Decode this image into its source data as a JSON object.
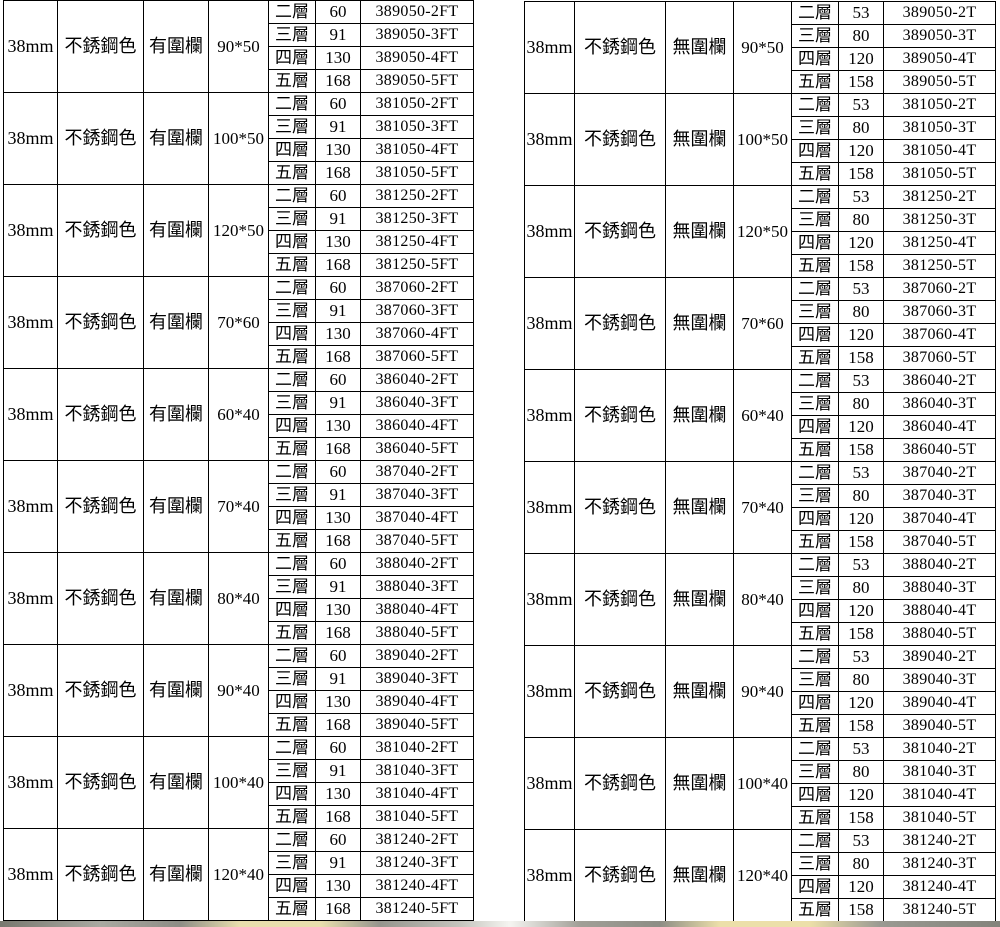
{
  "page": {
    "background": "#ffffff",
    "border_color": "#000000",
    "text_color": "#000000"
  },
  "tables": [
    {
      "id": "with-fence",
      "groups": [
        {
          "thickness": "38mm",
          "color": "不銹鋼色",
          "fence": "有圍欄",
          "size": "90*50",
          "rows": [
            [
              "二層",
              "60",
              "389050-2FT"
            ],
            [
              "三層",
              "91",
              "389050-3FT"
            ],
            [
              "四層",
              "130",
              "389050-4FT"
            ],
            [
              "五層",
              "168",
              "389050-5FT"
            ]
          ]
        },
        {
          "thickness": "38mm",
          "color": "不銹鋼色",
          "fence": "有圍欄",
          "size": "100*50",
          "rows": [
            [
              "二層",
              "60",
              "381050-2FT"
            ],
            [
              "三層",
              "91",
              "381050-3FT"
            ],
            [
              "四層",
              "130",
              "381050-4FT"
            ],
            [
              "五層",
              "168",
              "381050-5FT"
            ]
          ]
        },
        {
          "thickness": "38mm",
          "color": "不銹鋼色",
          "fence": "有圍欄",
          "size": "120*50",
          "rows": [
            [
              "二層",
              "60",
              "381250-2FT"
            ],
            [
              "三層",
              "91",
              "381250-3FT"
            ],
            [
              "四層",
              "130",
              "381250-4FT"
            ],
            [
              "五層",
              "168",
              "381250-5FT"
            ]
          ]
        },
        {
          "thickness": "38mm",
          "color": "不銹鋼色",
          "fence": "有圍欄",
          "size": "70*60",
          "rows": [
            [
              "二層",
              "60",
              "387060-2FT"
            ],
            [
              "三層",
              "91",
              "387060-3FT"
            ],
            [
              "四層",
              "130",
              "387060-4FT"
            ],
            [
              "五層",
              "168",
              "387060-5FT"
            ]
          ]
        },
        {
          "thickness": "38mm",
          "color": "不銹鋼色",
          "fence": "有圍欄",
          "size": "60*40",
          "rows": [
            [
              "二層",
              "60",
              "386040-2FT"
            ],
            [
              "三層",
              "91",
              "386040-3FT"
            ],
            [
              "四層",
              "130",
              "386040-4FT"
            ],
            [
              "五層",
              "168",
              "386040-5FT"
            ]
          ]
        },
        {
          "thickness": "38mm",
          "color": "不銹鋼色",
          "fence": "有圍欄",
          "size": "70*40",
          "rows": [
            [
              "二層",
              "60",
              "387040-2FT"
            ],
            [
              "三層",
              "91",
              "387040-3FT"
            ],
            [
              "四層",
              "130",
              "387040-4FT"
            ],
            [
              "五層",
              "168",
              "387040-5FT"
            ]
          ]
        },
        {
          "thickness": "38mm",
          "color": "不銹鋼色",
          "fence": "有圍欄",
          "size": "80*40",
          "rows": [
            [
              "二層",
              "60",
              "388040-2FT"
            ],
            [
              "三層",
              "91",
              "388040-3FT"
            ],
            [
              "四層",
              "130",
              "388040-4FT"
            ],
            [
              "五層",
              "168",
              "388040-5FT"
            ]
          ]
        },
        {
          "thickness": "38mm",
          "color": "不銹鋼色",
          "fence": "有圍欄",
          "size": "90*40",
          "rows": [
            [
              "二層",
              "60",
              "389040-2FT"
            ],
            [
              "三層",
              "91",
              "389040-3FT"
            ],
            [
              "四層",
              "130",
              "389040-4FT"
            ],
            [
              "五層",
              "168",
              "389040-5FT"
            ]
          ]
        },
        {
          "thickness": "38mm",
          "color": "不銹鋼色",
          "fence": "有圍欄",
          "size": "100*40",
          "rows": [
            [
              "二層",
              "60",
              "381040-2FT"
            ],
            [
              "三層",
              "91",
              "381040-3FT"
            ],
            [
              "四層",
              "130",
              "381040-4FT"
            ],
            [
              "五層",
              "168",
              "381040-5FT"
            ]
          ]
        },
        {
          "thickness": "38mm",
          "color": "不銹鋼色",
          "fence": "有圍欄",
          "size": "120*40",
          "rows": [
            [
              "二層",
              "60",
              "381240-2FT"
            ],
            [
              "三層",
              "91",
              "381240-3FT"
            ],
            [
              "四層",
              "130",
              "381240-4FT"
            ],
            [
              "五層",
              "168",
              "381240-5FT"
            ]
          ]
        }
      ]
    },
    {
      "id": "without-fence",
      "groups": [
        {
          "thickness": "38mm",
          "color": "不銹鋼色",
          "fence": "無圍欄",
          "size": "90*50",
          "rows": [
            [
              "二層",
              "53",
              "389050-2T"
            ],
            [
              "三層",
              "80",
              "389050-3T"
            ],
            [
              "四層",
              "120",
              "389050-4T"
            ],
            [
              "五層",
              "158",
              "389050-5T"
            ]
          ]
        },
        {
          "thickness": "38mm",
          "color": "不銹鋼色",
          "fence": "無圍欄",
          "size": "100*50",
          "rows": [
            [
              "二層",
              "53",
              "381050-2T"
            ],
            [
              "三層",
              "80",
              "381050-3T"
            ],
            [
              "四層",
              "120",
              "381050-4T"
            ],
            [
              "五層",
              "158",
              "381050-5T"
            ]
          ]
        },
        {
          "thickness": "38mm",
          "color": "不銹鋼色",
          "fence": "無圍欄",
          "size": "120*50",
          "rows": [
            [
              "二層",
              "53",
              "381250-2T"
            ],
            [
              "三層",
              "80",
              "381250-3T"
            ],
            [
              "四層",
              "120",
              "381250-4T"
            ],
            [
              "五層",
              "158",
              "381250-5T"
            ]
          ]
        },
        {
          "thickness": "38mm",
          "color": "不銹鋼色",
          "fence": "無圍欄",
          "size": "70*60",
          "rows": [
            [
              "二層",
              "53",
              "387060-2T"
            ],
            [
              "三層",
              "80",
              "387060-3T"
            ],
            [
              "四層",
              "120",
              "387060-4T"
            ],
            [
              "五層",
              "158",
              "387060-5T"
            ]
          ]
        },
        {
          "thickness": "38mm",
          "color": "不銹鋼色",
          "fence": "無圍欄",
          "size": "60*40",
          "rows": [
            [
              "二層",
              "53",
              "386040-2T"
            ],
            [
              "三層",
              "80",
              "386040-3T"
            ],
            [
              "四層",
              "120",
              "386040-4T"
            ],
            [
              "五層",
              "158",
              "386040-5T"
            ]
          ]
        },
        {
          "thickness": "38mm",
          "color": "不銹鋼色",
          "fence": "無圍欄",
          "size": "70*40",
          "rows": [
            [
              "二層",
              "53",
              "387040-2T"
            ],
            [
              "三層",
              "80",
              "387040-3T"
            ],
            [
              "四層",
              "120",
              "387040-4T"
            ],
            [
              "五層",
              "158",
              "387040-5T"
            ]
          ]
        },
        {
          "thickness": "38mm",
          "color": "不銹鋼色",
          "fence": "無圍欄",
          "size": "80*40",
          "rows": [
            [
              "二層",
              "53",
              "388040-2T"
            ],
            [
              "三層",
              "80",
              "388040-3T"
            ],
            [
              "四層",
              "120",
              "388040-4T"
            ],
            [
              "五層",
              "158",
              "388040-5T"
            ]
          ]
        },
        {
          "thickness": "38mm",
          "color": "不銹鋼色",
          "fence": "無圍欄",
          "size": "90*40",
          "rows": [
            [
              "二層",
              "53",
              "389040-2T"
            ],
            [
              "三層",
              "80",
              "389040-3T"
            ],
            [
              "四層",
              "120",
              "389040-4T"
            ],
            [
              "五層",
              "158",
              "389040-5T"
            ]
          ]
        },
        {
          "thickness": "38mm",
          "color": "不銹鋼色",
          "fence": "無圍欄",
          "size": "100*40",
          "rows": [
            [
              "二層",
              "53",
              "381040-2T"
            ],
            [
              "三層",
              "80",
              "381040-3T"
            ],
            [
              "四層",
              "120",
              "381040-4T"
            ],
            [
              "五層",
              "158",
              "381040-5T"
            ]
          ]
        },
        {
          "thickness": "38mm",
          "color": "不銹鋼色",
          "fence": "無圍欄",
          "size": "120*40",
          "rows": [
            [
              "二層",
              "53",
              "381240-2T"
            ],
            [
              "三層",
              "80",
              "381240-3T"
            ],
            [
              "四層",
              "120",
              "381240-4T"
            ],
            [
              "五層",
              "158",
              "381240-5T"
            ]
          ]
        }
      ]
    }
  ]
}
